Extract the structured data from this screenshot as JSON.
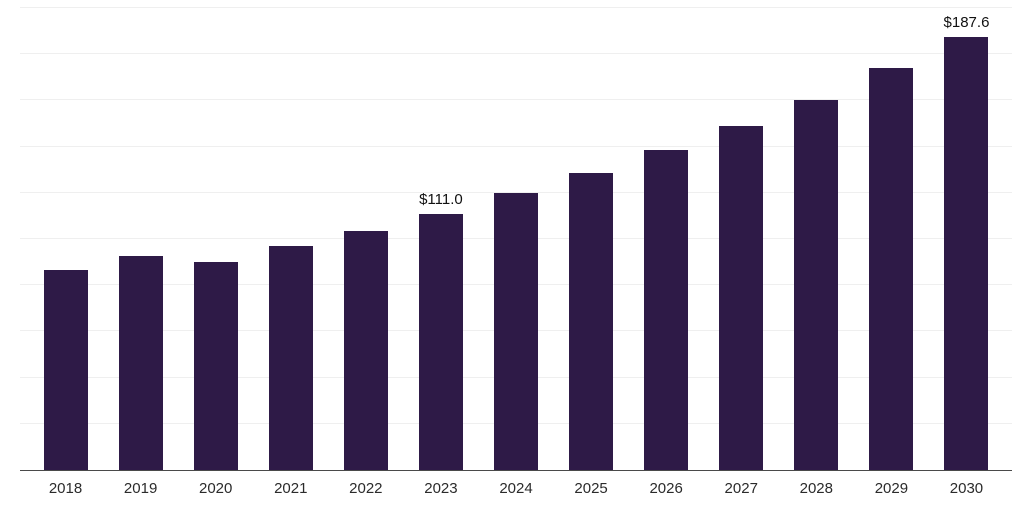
{
  "chart_data": {
    "type": "bar",
    "title": "",
    "xlabel": "",
    "ylabel": "",
    "categories": [
      "2018",
      "2019",
      "2020",
      "2021",
      "2022",
      "2023",
      "2024",
      "2025",
      "2026",
      "2027",
      "2028",
      "2029",
      "2030"
    ],
    "values": [
      86.7,
      92.7,
      90.1,
      96.9,
      103.3,
      111.0,
      120.0,
      128.6,
      138.4,
      149.0,
      160.2,
      173.9,
      187.6
    ],
    "data_labels": [
      null,
      null,
      null,
      null,
      null,
      "$111.0",
      null,
      null,
      null,
      null,
      null,
      null,
      "$187.6"
    ],
    "ylim": [
      0,
      200
    ],
    "grid_step": 20,
    "grid": "horizontal",
    "legend_position": "none",
    "colors": {
      "bar": "#2e1a47",
      "gridline": "#efefef",
      "axis_line": "#4a4a4a",
      "data_label_text": "#111111",
      "tick_label_text": "#2b2b2b",
      "background": "#ffffff"
    }
  }
}
